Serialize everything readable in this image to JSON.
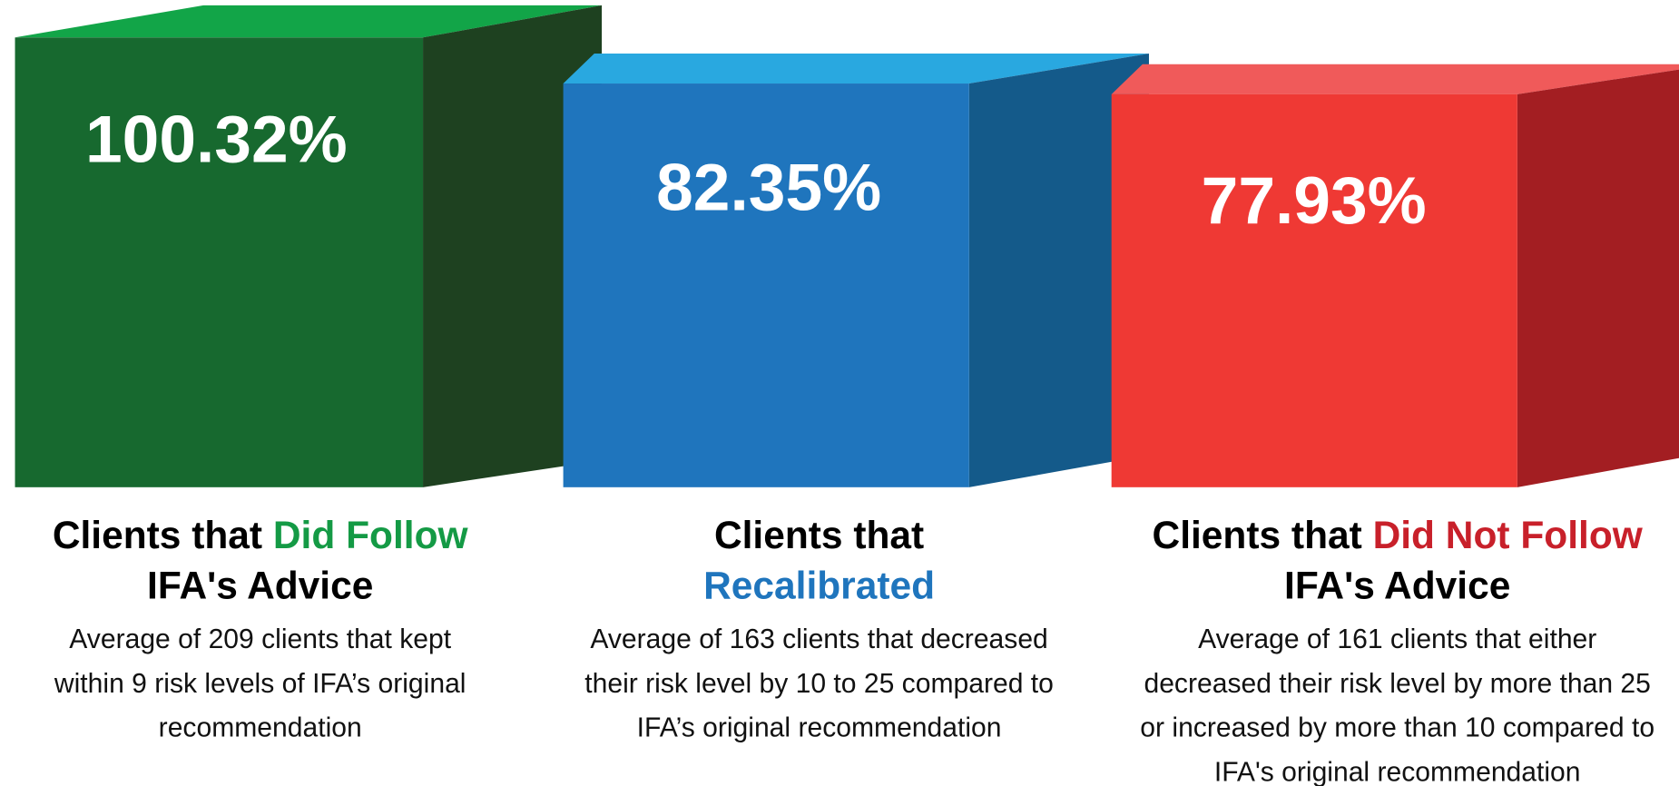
{
  "cards": [
    {
      "value": "100.32%",
      "colors": {
        "front": "#17692f",
        "top": "#12a548",
        "side": "#1e4120"
      },
      "title_lines": [
        [
          {
            "text": "Clients that "
          },
          {
            "text": "Did Follow",
            "color": "#149a45"
          }
        ],
        [
          {
            "text": "IFA's Advice"
          }
        ]
      ],
      "description": [
        "Average of 209 clients that kept",
        "within 9 risk levels of IFA’s original",
        "recommendation"
      ]
    },
    {
      "value": "82.35%",
      "colors": {
        "front": "#1f75bd",
        "top": "#29a8e0",
        "side": "#145a8a"
      },
      "title_lines": [
        [
          {
            "text": "Clients that"
          }
        ],
        [
          {
            "text": "Recalibrated",
            "color": "#1f75bd"
          }
        ]
      ],
      "description": [
        "Average of 163 clients that decreased",
        "their risk level by 10 to 25 compared to",
        "IFA’s original recommendation"
      ]
    },
    {
      "value": "77.93%",
      "colors": {
        "front": "#ef3934",
        "top": "#f05a5a",
        "side": "#a31e22"
      },
      "title_lines": [
        [
          {
            "text": "Clients that "
          },
          {
            "text": "Did Not Follow",
            "color": "#c8202a"
          }
        ],
        [
          {
            "text": "IFA's Advice"
          }
        ]
      ],
      "description": [
        "Average of 161 clients that either",
        "decreased their risk level by more than 25",
        "or increased by more than 10 compared to",
        "IFA's original recommendation"
      ]
    }
  ]
}
